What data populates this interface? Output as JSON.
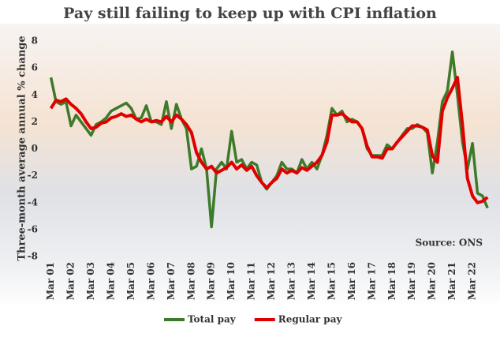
{
  "chart_data": {
    "type": "line",
    "title": "Pay still failing to keep up with CPI inflation",
    "y_label": "Three-month average annual % change",
    "annotation": "Source: ONS",
    "xlim": [
      2000.7,
      2022.9
    ],
    "ylim": [
      -8,
      8
    ],
    "yticks": [
      8,
      6,
      4,
      2,
      0,
      -2,
      -4,
      -6,
      -8
    ],
    "xticks": [
      {
        "value": 2001,
        "label": "Mar 01"
      },
      {
        "value": 2002,
        "label": "Mar 02"
      },
      {
        "value": 2003,
        "label": "Mar 03"
      },
      {
        "value": 2004,
        "label": "Mar 04"
      },
      {
        "value": 2005,
        "label": "Mar 05"
      },
      {
        "value": 2006,
        "label": "Mar 06"
      },
      {
        "value": 2007,
        "label": "Mar 07"
      },
      {
        "value": 2008,
        "label": "Mar 08"
      },
      {
        "value": 2009,
        "label": "Mar 09"
      },
      {
        "value": 2010,
        "label": "Mar 10"
      },
      {
        "value": 2011,
        "label": "Mar 11"
      },
      {
        "value": 2012,
        "label": "Mar 12"
      },
      {
        "value": 2013,
        "label": "Mar 13"
      },
      {
        "value": 2014,
        "label": "Mar 14"
      },
      {
        "value": 2015,
        "label": "Mar 15"
      },
      {
        "value": 2016,
        "label": "Mar 16"
      },
      {
        "value": 2017,
        "label": "Mar 17"
      },
      {
        "value": 2018,
        "label": "Mar 18"
      },
      {
        "value": 2019,
        "label": "Mar 19"
      },
      {
        "value": 2020,
        "label": "Mar 20"
      },
      {
        "value": 2021,
        "label": "Mar 21"
      },
      {
        "value": 2022,
        "label": "Mar 22"
      }
    ],
    "x": [
      2001,
      2001.25,
      2001.5,
      2001.75,
      2002,
      2002.25,
      2002.5,
      2002.75,
      2003,
      2003.25,
      2003.5,
      2003.75,
      2004,
      2004.25,
      2004.5,
      2004.75,
      2005,
      2005.25,
      2005.5,
      2005.75,
      2006,
      2006.25,
      2006.5,
      2006.75,
      2007,
      2007.25,
      2007.5,
      2007.75,
      2008,
      2008.25,
      2008.5,
      2008.75,
      2009,
      2009.25,
      2009.5,
      2009.75,
      2010,
      2010.25,
      2010.5,
      2010.75,
      2011,
      2011.25,
      2011.5,
      2011.75,
      2012,
      2012.25,
      2012.5,
      2012.75,
      2013,
      2013.25,
      2013.5,
      2013.75,
      2014,
      2014.25,
      2014.5,
      2014.75,
      2015,
      2015.25,
      2015.5,
      2015.75,
      2016,
      2016.25,
      2016.5,
      2016.75,
      2017,
      2017.25,
      2017.5,
      2017.75,
      2018,
      2018.25,
      2018.5,
      2018.75,
      2019,
      2019.25,
      2019.5,
      2019.75,
      2020,
      2020.25,
      2020.5,
      2020.75,
      2021,
      2021.25,
      2021.5,
      2021.75,
      2022,
      2022.25,
      2022.5,
      2022.75
    ],
    "series": [
      {
        "name": "Total pay",
        "color": "#3d7a2a",
        "values": [
          5.3,
          3.5,
          3.3,
          3.5,
          1.7,
          2.5,
          2.0,
          1.5,
          1.0,
          1.8,
          2.0,
          2.3,
          2.8,
          3.0,
          3.2,
          3.4,
          3.0,
          2.2,
          2.3,
          3.2,
          2.0,
          2.0,
          1.8,
          3.5,
          1.5,
          3.3,
          2.2,
          1.5,
          -1.5,
          -1.3,
          0.0,
          -1.5,
          -5.8,
          -1.5,
          -1.0,
          -1.5,
          1.3,
          -1.0,
          -0.8,
          -1.5,
          -1.0,
          -1.2,
          -2.5,
          -3.0,
          -2.5,
          -2.0,
          -1.0,
          -1.5,
          -1.5,
          -1.8,
          -0.8,
          -1.5,
          -1.0,
          -1.5,
          -0.5,
          1.0,
          3.0,
          2.5,
          2.8,
          2.0,
          2.2,
          2.0,
          1.5,
          0.0,
          -0.5,
          -0.5,
          -0.5,
          0.3,
          0.0,
          0.5,
          1.0,
          1.5,
          1.5,
          1.8,
          1.6,
          1.2,
          -1.8,
          0.5,
          3.5,
          4.3,
          7.2,
          4.0,
          0.5,
          -1.5,
          0.4,
          -3.3,
          -3.5,
          -4.4
        ]
      },
      {
        "name": "Regular pay",
        "color": "#e00000",
        "values": [
          3.0,
          3.6,
          3.5,
          3.7,
          3.3,
          3.0,
          2.6,
          2.0,
          1.5,
          1.6,
          1.9,
          2.0,
          2.3,
          2.4,
          2.6,
          2.4,
          2.5,
          2.2,
          2.0,
          2.2,
          2.0,
          2.1,
          2.0,
          2.4,
          2.0,
          2.5,
          2.2,
          1.8,
          1.2,
          -0.3,
          -1.0,
          -1.5,
          -1.3,
          -1.8,
          -1.6,
          -1.4,
          -1.0,
          -1.5,
          -1.2,
          -1.6,
          -1.3,
          -2.0,
          -2.5,
          -2.9,
          -2.5,
          -2.2,
          -1.5,
          -1.8,
          -1.6,
          -1.8,
          -1.4,
          -1.6,
          -1.3,
          -1.0,
          -0.5,
          0.5,
          2.5,
          2.5,
          2.6,
          2.3,
          2.0,
          2.0,
          1.5,
          0.2,
          -0.6,
          -0.6,
          -0.7,
          0.0,
          0.0,
          0.5,
          0.9,
          1.3,
          1.7,
          1.7,
          1.6,
          1.4,
          -0.5,
          -1.0,
          2.8,
          3.8,
          4.5,
          5.3,
          1.8,
          -2.2,
          -3.5,
          -4.0,
          -3.9,
          -3.6
        ]
      }
    ]
  }
}
